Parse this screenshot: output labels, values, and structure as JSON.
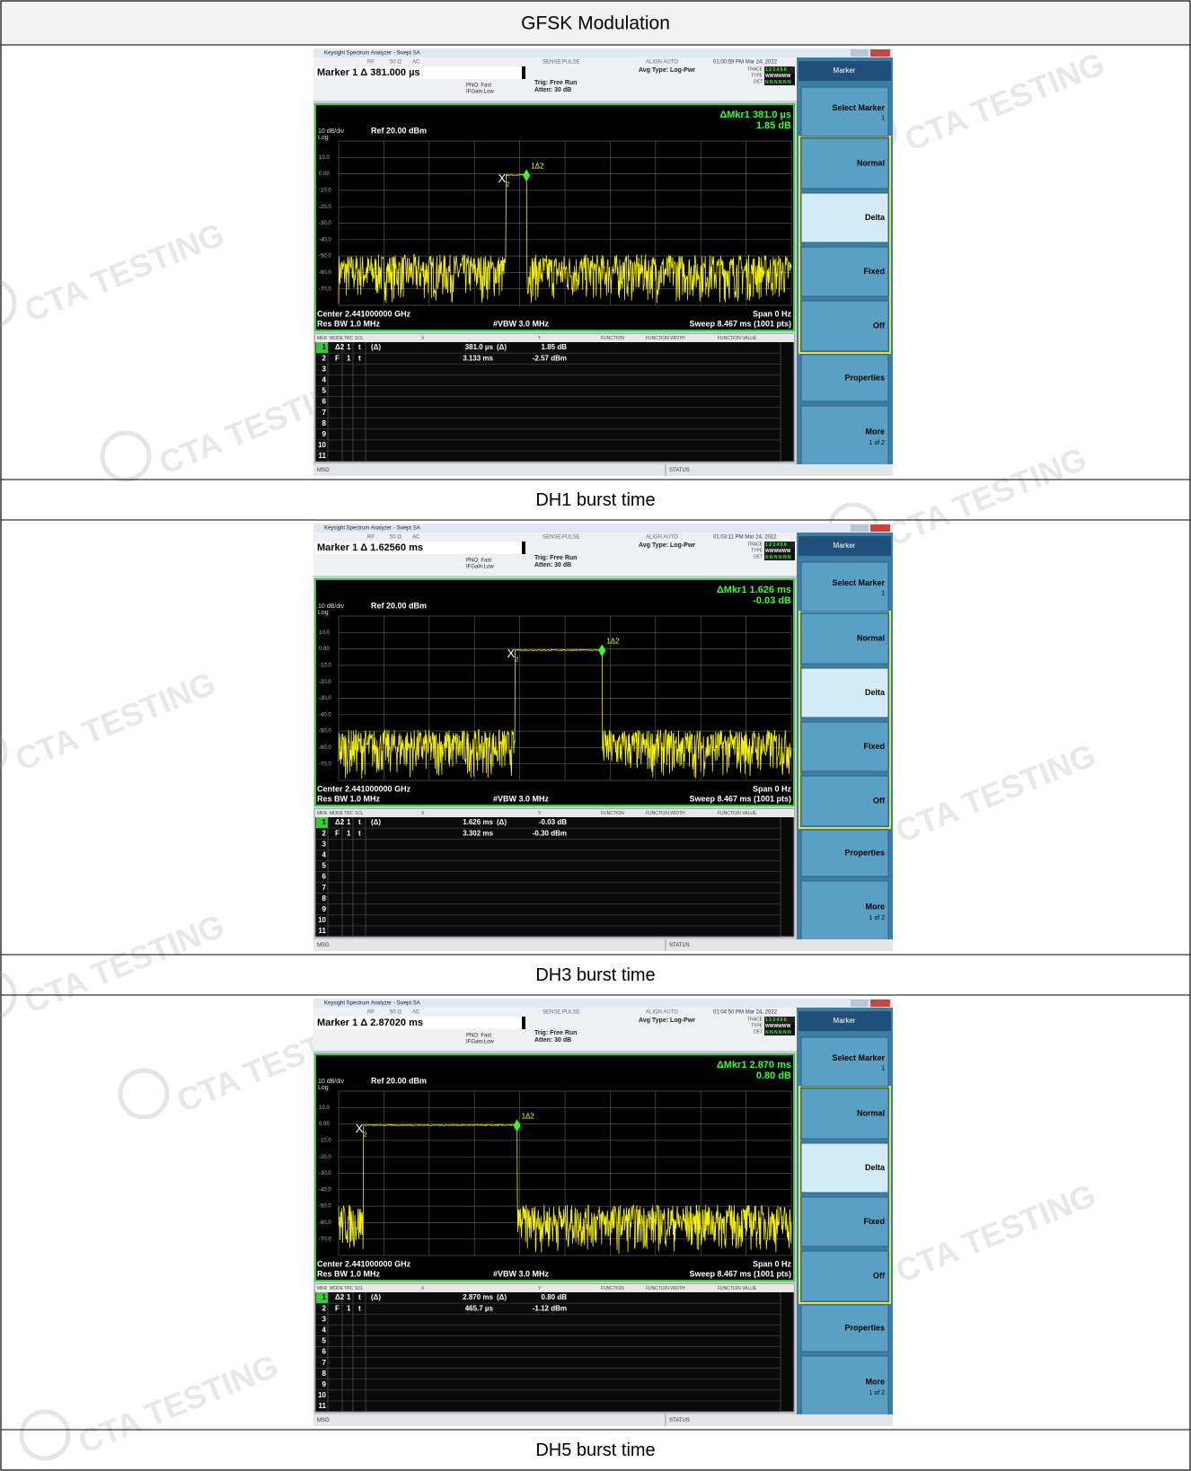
{
  "header": "GFSK Modulation",
  "watermark": "CTA TESTING",
  "analyzer": {
    "window_title": "Keysight Spectrum Analyzer - Swept SA",
    "input": [
      "RF",
      "50 Ω",
      "AC"
    ],
    "sense": "SENSE:PULSE",
    "align": "ALIGN AUTO",
    "pno": "PNO: Fast",
    "ifgain": "IFGain:Low",
    "trig": "Trig: Free Run",
    "atten": "Atten: 30 dB",
    "avg": "Avg Type: Log-Pwr",
    "trace_rows": [
      {
        "label": "TRACE",
        "value": "1 2 3 4 5 6"
      },
      {
        "label": "TYPE",
        "value": "WWWWWW"
      },
      {
        "label": "DET",
        "value": "N N N N N N"
      }
    ],
    "scale": "10 dB/div",
    "log": "Log",
    "ref": "Ref 20.00 dBm",
    "y_labels": [
      "10.0",
      "0.00",
      "-10.0",
      "-20.0",
      "-30.0",
      "-40.0",
      "-50.0",
      "-60.0",
      "-70.0"
    ],
    "center": "Center 2.441000000 GHz",
    "span": "Span 0 Hz",
    "rbw": "Res BW 1.0 MHz",
    "vbw": "#VBW 3.0 MHz",
    "sweep": "Sweep 8.467 ms (1001 pts)",
    "marker_labels": {
      "ref": "X",
      "ref_sub": "2",
      "delta": "1Δ2"
    },
    "table_header": [
      "MKR",
      "MODE",
      "TRC",
      "SCL",
      "X",
      "Y",
      "FUNCTION",
      "FUNCTION WIDTH",
      "FUNCTION VALUE"
    ],
    "row_numbers": [
      "1",
      "2",
      "3",
      "4",
      "5",
      "6",
      "7",
      "8",
      "9",
      "10",
      "11"
    ],
    "msg": "MSG",
    "status": "STATUS",
    "softkeys": {
      "menu": "Marker",
      "select": "Select Marker",
      "select_value": "1",
      "normal": "Normal",
      "delta": "Delta",
      "fixed": "Fixed",
      "off": "Off",
      "properties": "Properties",
      "more": "More",
      "more_page": "1 of 2"
    }
  },
  "panels": [
    {
      "caption": "DH1 burst time",
      "clock": "01:00:59 PM Mar 24, 2022",
      "marker_readout": "Marker 1 Δ 381.000 µs",
      "delta_marker": "ΔMkr1 381.0 µs",
      "delta_level": "1.85 dB",
      "markers": [
        {
          "mode": "Δ2",
          "trc": "1",
          "scl": "t",
          "x_ref": "(Δ)",
          "x": "381.0 µs",
          "y_ref": "(Δ)",
          "y": "1.85 dB"
        },
        {
          "mode": "F",
          "trc": "1",
          "scl": "t",
          "x": "3.133 ms",
          "y": "-2.57 dBm"
        }
      ]
    },
    {
      "caption": "DH3 burst time",
      "clock": "01:03:11 PM Mar 24, 2022",
      "marker_readout": "Marker 1 Δ 1.62560 ms",
      "delta_marker": "ΔMkr1 1.626 ms",
      "delta_level": "-0.03 dB",
      "markers": [
        {
          "mode": "Δ2",
          "trc": "1",
          "scl": "t",
          "x_ref": "(Δ)",
          "x": "1.626 ms",
          "y_ref": "(Δ)",
          "y": "-0.03 dB"
        },
        {
          "mode": "F",
          "trc": "1",
          "scl": "t",
          "x": "3.302 ms",
          "y": "-0.30 dBm"
        }
      ]
    },
    {
      "caption": "DH5 burst time",
      "clock": "01:04:50 PM Mar 24, 2022",
      "marker_readout": "Marker 1 Δ 2.87020 ms",
      "delta_marker": "ΔMkr1 2.870 ms",
      "delta_level": "0.80 dB",
      "markers": [
        {
          "mode": "Δ2",
          "trc": "1",
          "scl": "t",
          "x_ref": "(Δ)",
          "x": "2.870 ms",
          "y_ref": "(Δ)",
          "y": "0.80 dB"
        },
        {
          "mode": "F",
          "trc": "1",
          "scl": "t",
          "x": "465.7 µs",
          "y": "-1.12 dBm"
        }
      ]
    }
  ]
}
